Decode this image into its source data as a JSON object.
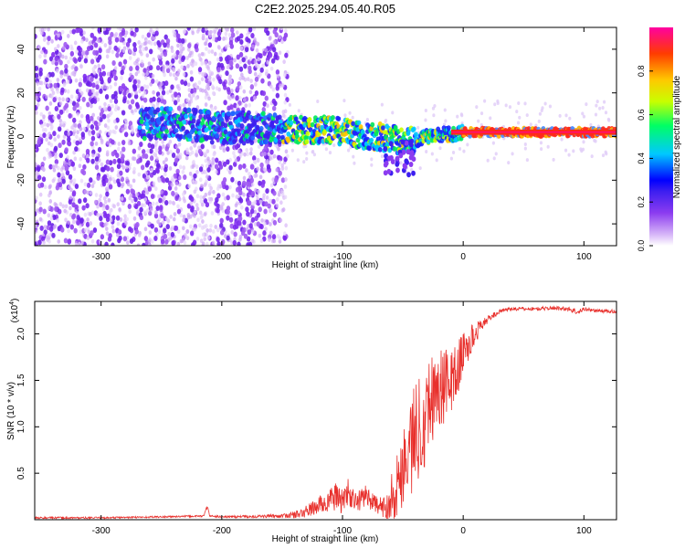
{
  "title": "C2E2.2025.294.05.40.R05",
  "chart_data": [
    {
      "type": "heatmap",
      "name": "spectrogram",
      "xlabel": "Height of straight line (km)",
      "ylabel": "Frequency (Hz)",
      "xlim": [
        -355,
        127
      ],
      "ylim": [
        -50,
        50
      ],
      "xticks": [
        -300,
        -200,
        -100,
        0,
        100
      ],
      "xtick_labels": [
        "-300",
        "-200",
        "-100",
        "0",
        "100"
      ],
      "yticks": [
        -40,
        -20,
        0,
        20,
        40
      ],
      "ytick_labels": [
        "-40",
        "-20",
        "0",
        "20",
        "40"
      ],
      "colorbar": {
        "label": "Normalized spectral amplitude",
        "range": [
          0,
          1
        ],
        "ticks": [
          0.0,
          0.2,
          0.4,
          0.6,
          0.8
        ],
        "tick_labels": [
          "0.0",
          "0.2",
          "0.4",
          "0.6",
          "0.8"
        ],
        "colors": [
          "#ffffff",
          "#d8b8f8",
          "#8c3cf0",
          "#3c1ef0",
          "#0000ff",
          "#00c8ff",
          "#00ff64",
          "#c8ff00",
          "#ffc800",
          "#ff3c00",
          "#ff00a0"
        ]
      },
      "ridge_x": [
        -265,
        -240,
        -220,
        -200,
        -180,
        -160,
        -150,
        -130,
        -110,
        -100,
        -90,
        -80,
        -70,
        -60,
        -50,
        -40,
        -30,
        -20,
        -10,
        0,
        20,
        40,
        60,
        80,
        100,
        127
      ],
      "ridge_y": [
        6,
        6,
        5,
        4,
        4,
        4,
        3,
        3,
        3,
        2,
        1,
        0,
        0,
        -1,
        -2,
        -2,
        0,
        1,
        1,
        2,
        2,
        2,
        2,
        2,
        2,
        2
      ]
    },
    {
      "type": "line",
      "name": "snr",
      "xlabel": "Height of straight line (km)",
      "ylabel": "SNR (10 * v/v)",
      "scale_label_base": "(x10",
      "scale_label_exp": "4",
      "scale_label_end": ")",
      "xlim": [
        -355,
        127
      ],
      "ylim": [
        0,
        2.35
      ],
      "xticks": [
        -300,
        -200,
        -100,
        0,
        100
      ],
      "xtick_labels": [
        "-300",
        "-200",
        "-100",
        "0",
        "100"
      ],
      "yticks": [
        0.5,
        1.0,
        1.5,
        2.0
      ],
      "ytick_labels": [
        "0.5",
        "1.0",
        "1.5",
        "2.0"
      ],
      "color": "#e8302c",
      "x": [
        -355,
        -300,
        -250,
        -215,
        -212,
        -210,
        -200,
        -150,
        -135,
        -125,
        -115,
        -105,
        -100,
        -95,
        -90,
        -85,
        -80,
        -75,
        -70,
        -65,
        -60,
        -55,
        -50,
        -45,
        -40,
        -35,
        -30,
        -25,
        -20,
        -15,
        -10,
        -5,
        0,
        5,
        10,
        15,
        20,
        25,
        30,
        35,
        40,
        60,
        80,
        90,
        95,
        100,
        110,
        127
      ],
      "y": [
        0.02,
        0.02,
        0.03,
        0.04,
        0.14,
        0.04,
        0.03,
        0.04,
        0.06,
        0.12,
        0.18,
        0.25,
        0.2,
        0.3,
        0.18,
        0.22,
        0.28,
        0.18,
        0.15,
        0.12,
        0.25,
        0.35,
        0.6,
        0.75,
        0.9,
        1.05,
        1.2,
        1.35,
        1.4,
        1.45,
        1.5,
        1.6,
        1.8,
        1.9,
        2.0,
        2.1,
        2.15,
        2.2,
        2.24,
        2.26,
        2.27,
        2.27,
        2.28,
        2.26,
        2.23,
        2.27,
        2.25,
        2.24
      ],
      "noise_amp": [
        0.01,
        0.01,
        0.01,
        0.01,
        0.02,
        0.01,
        0.01,
        0.02,
        0.05,
        0.08,
        0.12,
        0.15,
        0.15,
        0.15,
        0.12,
        0.12,
        0.12,
        0.1,
        0.1,
        0.12,
        0.25,
        0.35,
        0.45,
        0.55,
        0.6,
        0.6,
        0.55,
        0.5,
        0.45,
        0.4,
        0.35,
        0.3,
        0.25,
        0.2,
        0.12,
        0.06,
        0.04,
        0.03,
        0.02,
        0.02,
        0.02,
        0.02,
        0.02,
        0.03,
        0.03,
        0.02,
        0.02,
        0.02
      ]
    }
  ]
}
